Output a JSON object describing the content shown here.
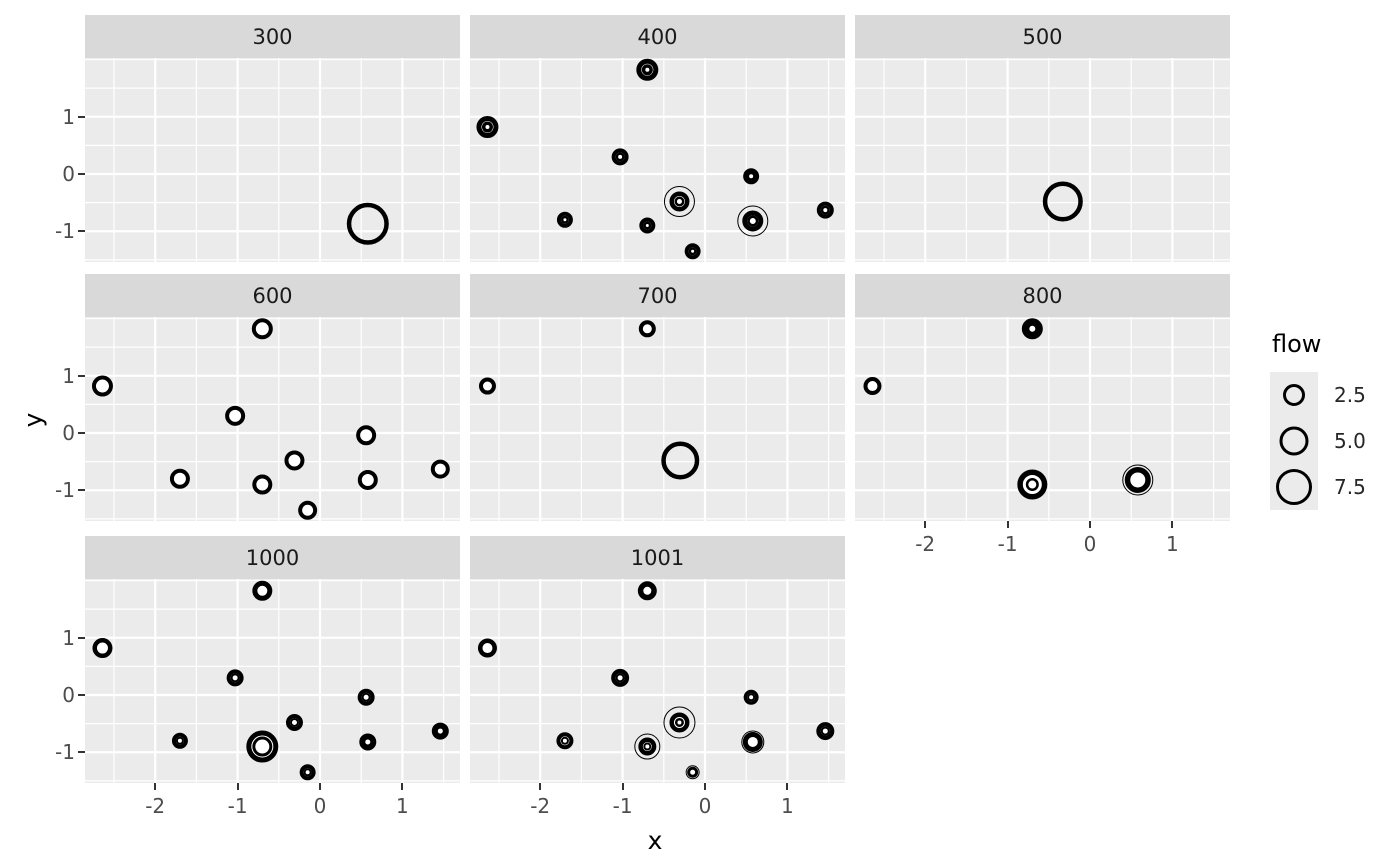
{
  "chart_data": {
    "type": "scatter",
    "title": "",
    "xlabel": "x",
    "ylabel": "y",
    "grid": true,
    "panel_bg": "#EBEBEB",
    "strip_bg": "#D9D9D9",
    "grid_color": "#FFFFFF",
    "point_color": "#000000",
    "tick_label_color": "#4D4D4D",
    "x_ticks": [
      -2,
      -1,
      0,
      1
    ],
    "y_ticks": [
      1,
      0,
      -1
    ],
    "x_tick_labels": [
      "-2",
      "-1",
      "0",
      "1"
    ],
    "y_tick_labels": [
      "1",
      "0",
      "-1"
    ],
    "x_minor_ticks": [
      -2.5,
      -1.5,
      -0.5,
      0.5,
      1.5
    ],
    "y_minor_ticks": [
      2,
      1.5,
      0.5,
      -0.5,
      -1.5
    ],
    "x_range": [
      -2.85,
      1.69
    ],
    "y_range": [
      -1.55,
      2.03
    ],
    "legend": {
      "title": "flow",
      "position": "right",
      "entries": [
        {
          "label": "2.5",
          "diameter": 22
        },
        {
          "label": "5.0",
          "diameter": 29
        },
        {
          "label": "7.5",
          "diameter": 36
        }
      ]
    },
    "facets": [
      {
        "label": "300",
        "row": 0,
        "col": 0,
        "axis_x": false,
        "axis_y": true,
        "points": [
          {
            "x": 0.58,
            "y": -0.87,
            "rings": [
              [
                42,
                4.5,
                "n"
              ]
            ]
          }
        ]
      },
      {
        "label": "400",
        "row": 0,
        "col": 1,
        "axis_x": false,
        "axis_y": false,
        "points": [
          {
            "x": -0.7,
            "y": 1.82,
            "rings": [
              [
                22,
                5,
                "w"
              ],
              [
                11,
                3.5,
                "w"
              ]
            ]
          },
          {
            "x": -2.64,
            "y": 0.82,
            "rings": [
              [
                22,
                5,
                "w"
              ],
              [
                11,
                3.5,
                "w"
              ]
            ]
          },
          {
            "x": -1.03,
            "y": 0.3,
            "rings": [
              [
                17,
                4,
                "w"
              ],
              [
                9,
                2.5,
                "w"
              ]
            ]
          },
          {
            "x": 0.56,
            "y": -0.04,
            "rings": [
              [
                16,
                4,
                "w"
              ],
              [
                9,
                2.5,
                "w"
              ]
            ]
          },
          {
            "x": -0.31,
            "y": -0.48,
            "rings": [
              [
                31,
                1,
                "n"
              ],
              [
                20,
                4.5,
                "w"
              ],
              [
                10,
                2.5,
                "w"
              ]
            ]
          },
          {
            "x": -1.7,
            "y": -0.8,
            "rings": [
              [
                16,
                4,
                "w"
              ],
              [
                8,
                2.5,
                "w"
              ]
            ]
          },
          {
            "x": -0.7,
            "y": -0.9,
            "rings": [
              [
                16,
                4,
                "w"
              ],
              [
                8,
                2.5,
                "w"
              ]
            ]
          },
          {
            "x": 0.58,
            "y": -0.82,
            "rings": [
              [
                31,
                1,
                "n"
              ],
              [
                21,
                5,
                "w"
              ],
              [
                11,
                2.5,
                "w"
              ]
            ]
          },
          {
            "x": 1.46,
            "y": -0.63,
            "rings": [
              [
                17,
                4,
                "w"
              ],
              [
                9,
                2.5,
                "w"
              ]
            ]
          },
          {
            "x": -0.15,
            "y": -1.35,
            "rings": [
              [
                16,
                4,
                "w"
              ],
              [
                8,
                2.5,
                "w"
              ]
            ]
          }
        ]
      },
      {
        "label": "500",
        "row": 0,
        "col": 2,
        "axis_x": false,
        "axis_y": false,
        "points": [
          {
            "x": -0.33,
            "y": -0.48,
            "rings": [
              [
                40,
                4.5,
                "n"
              ]
            ]
          }
        ]
      },
      {
        "label": "600",
        "row": 1,
        "col": 0,
        "axis_x": false,
        "axis_y": true,
        "points": [
          {
            "x": -0.7,
            "y": 1.82,
            "rings": [
              [
                21,
                4,
                "w"
              ]
            ]
          },
          {
            "x": -2.64,
            "y": 0.82,
            "rings": [
              [
                21,
                4,
                "w"
              ]
            ]
          },
          {
            "x": -1.03,
            "y": 0.3,
            "rings": [
              [
                20,
                4,
                "w"
              ]
            ]
          },
          {
            "x": 0.56,
            "y": -0.04,
            "rings": [
              [
                20,
                4,
                "w"
              ]
            ]
          },
          {
            "x": -0.31,
            "y": -0.48,
            "rings": [
              [
                20,
                4,
                "w"
              ]
            ]
          },
          {
            "x": -1.7,
            "y": -0.8,
            "rings": [
              [
                20,
                4,
                "w"
              ]
            ]
          },
          {
            "x": -0.7,
            "y": -0.9,
            "rings": [
              [
                20,
                4,
                "w"
              ]
            ]
          },
          {
            "x": 0.58,
            "y": -0.82,
            "rings": [
              [
                20,
                4,
                "w"
              ]
            ]
          },
          {
            "x": 1.46,
            "y": -0.63,
            "rings": [
              [
                19,
                4,
                "w"
              ]
            ]
          },
          {
            "x": -0.15,
            "y": -1.35,
            "rings": [
              [
                19,
                4,
                "w"
              ]
            ]
          }
        ]
      },
      {
        "label": "700",
        "row": 1,
        "col": 1,
        "axis_x": false,
        "axis_y": false,
        "points": [
          {
            "x": -0.7,
            "y": 1.82,
            "rings": [
              [
                17,
                4,
                "w"
              ]
            ]
          },
          {
            "x": -2.64,
            "y": 0.82,
            "rings": [
              [
                17,
                4,
                "w"
              ]
            ]
          },
          {
            "x": -0.3,
            "y": -0.48,
            "rings": [
              [
                38,
                4.5,
                "n"
              ]
            ]
          }
        ]
      },
      {
        "label": "800",
        "row": 1,
        "col": 2,
        "axis_x": true,
        "axis_y": false,
        "points": [
          {
            "x": -0.7,
            "y": 1.82,
            "rings": [
              [
                21,
                5,
                "w"
              ],
              [
                12,
                3,
                "w"
              ]
            ]
          },
          {
            "x": -2.64,
            "y": 0.82,
            "rings": [
              [
                18,
                4,
                "w"
              ]
            ]
          },
          {
            "x": -0.7,
            "y": -0.9,
            "rings": [
              [
                30,
                5.5,
                "w"
              ],
              [
                13,
                2.5,
                "w"
              ]
            ]
          },
          {
            "x": 0.58,
            "y": -0.82,
            "rings": [
              [
                31,
                1,
                "n"
              ],
              [
                26,
                5.5,
                "w"
              ]
            ]
          }
        ]
      },
      {
        "label": "1000",
        "row": 2,
        "col": 0,
        "axis_x": true,
        "axis_y": true,
        "points": [
          {
            "x": -0.7,
            "y": 1.82,
            "rings": [
              [
                20,
                5,
                "w"
              ]
            ]
          },
          {
            "x": -2.64,
            "y": 0.82,
            "rings": [
              [
                20,
                4.5,
                "w"
              ]
            ]
          },
          {
            "x": -1.03,
            "y": 0.3,
            "rings": [
              [
                17,
                4,
                "w"
              ],
              [
                9,
                2,
                "w"
              ]
            ]
          },
          {
            "x": 0.56,
            "y": -0.04,
            "rings": [
              [
                17,
                4,
                "w"
              ],
              [
                9,
                2,
                "w"
              ]
            ]
          },
          {
            "x": -0.31,
            "y": -0.48,
            "rings": [
              [
                17,
                4,
                "w"
              ],
              [
                9,
                2,
                "w"
              ]
            ]
          },
          {
            "x": -1.7,
            "y": -0.8,
            "rings": [
              [
                16,
                4,
                "w"
              ],
              [
                8,
                2,
                "w"
              ]
            ]
          },
          {
            "x": -0.7,
            "y": -0.9,
            "rings": [
              [
                32,
                5,
                "w"
              ],
              [
                20,
                3,
                "w"
              ]
            ]
          },
          {
            "x": 0.58,
            "y": -0.82,
            "rings": [
              [
                17,
                4.5,
                "w"
              ],
              [
                9,
                2,
                "w"
              ]
            ]
          },
          {
            "x": 1.46,
            "y": -0.63,
            "rings": [
              [
                17,
                4.5,
                "w"
              ],
              [
                9,
                2,
                "w"
              ]
            ]
          },
          {
            "x": -0.15,
            "y": -1.35,
            "rings": [
              [
                16,
                4,
                "w"
              ],
              [
                8,
                2,
                "w"
              ]
            ]
          }
        ]
      },
      {
        "label": "1001",
        "row": 2,
        "col": 1,
        "axis_x": true,
        "axis_y": false,
        "points": [
          {
            "x": -0.7,
            "y": 1.82,
            "rings": [
              [
                19,
                5.5,
                "w"
              ]
            ]
          },
          {
            "x": -2.64,
            "y": 0.82,
            "rings": [
              [
                19,
                4.5,
                "w"
              ]
            ]
          },
          {
            "x": -1.03,
            "y": 0.3,
            "rings": [
              [
                18,
                4.5,
                "w"
              ],
              [
                9,
                2,
                "w"
              ]
            ]
          },
          {
            "x": 0.56,
            "y": -0.04,
            "rings": [
              [
                15,
                3.5,
                "w"
              ],
              [
                8,
                2,
                "w"
              ]
            ]
          },
          {
            "x": -0.31,
            "y": -0.48,
            "rings": [
              [
                32,
                1,
                "n"
              ],
              [
                20,
                4.5,
                "w"
              ],
              [
                9,
                2.5,
                "w"
              ]
            ]
          },
          {
            "x": -1.7,
            "y": -0.8,
            "rings": [
              [
                17,
                4,
                "w"
              ],
              [
                8,
                2,
                "w"
              ]
            ]
          },
          {
            "x": -0.7,
            "y": -0.9,
            "rings": [
              [
                26,
                1,
                "n"
              ],
              [
                18,
                4.5,
                "w"
              ],
              [
                8,
                2,
                "w"
              ]
            ]
          },
          {
            "x": 0.58,
            "y": -0.82,
            "rings": [
              [
                23,
                1,
                "n"
              ],
              [
                20,
                5,
                "w"
              ]
            ]
          },
          {
            "x": 1.46,
            "y": -0.63,
            "rings": [
              [
                18,
                4.5,
                "w"
              ],
              [
                9,
                2,
                "w"
              ]
            ]
          },
          {
            "x": -0.15,
            "y": -1.35,
            "rings": [
              [
                14,
                1,
                "n"
              ],
              [
                11,
                3,
                "w"
              ]
            ]
          }
        ]
      }
    ]
  }
}
